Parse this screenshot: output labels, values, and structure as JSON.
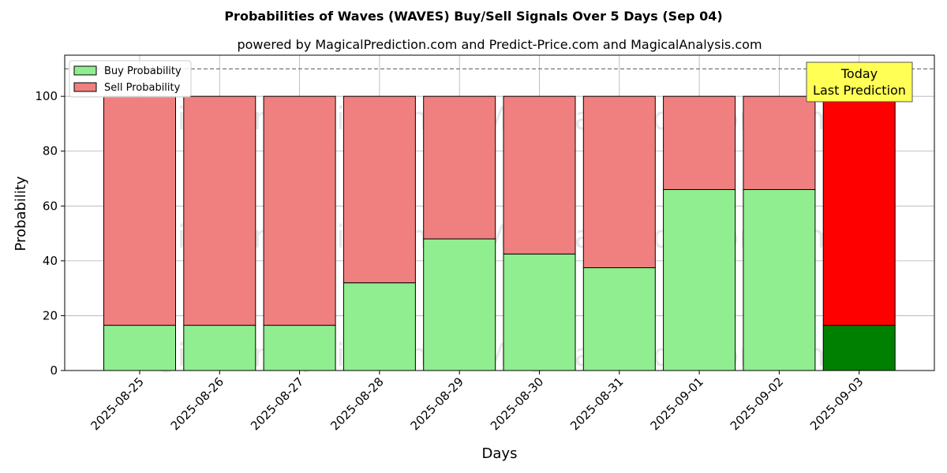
{
  "chart_data": {
    "type": "bar",
    "stacked": true,
    "title": "Probabilities of Waves (WAVES) Buy/Sell Signals Over 5 Days (Sep 04)",
    "subtitle": "powered by MagicalPrediction.com and Predict-Price.com and MagicalAnalysis.com",
    "xlabel": "Days",
    "ylabel": "Probability",
    "ylim": [
      0,
      115
    ],
    "yticks": [
      0,
      20,
      40,
      60,
      80,
      100
    ],
    "reference_line": 110,
    "grid": true,
    "legend_position": "top-left",
    "categories": [
      "2025-08-25",
      "2025-08-26",
      "2025-08-27",
      "2025-08-28",
      "2025-08-29",
      "2025-08-30",
      "2025-08-31",
      "2025-09-01",
      "2025-09-02",
      "2025-09-03"
    ],
    "series": [
      {
        "name": "Buy Probability",
        "color": "#90ee90",
        "values": [
          16.5,
          16.5,
          16.5,
          32,
          48,
          42.5,
          37.5,
          66,
          66,
          16.5
        ]
      },
      {
        "name": "Sell Probability",
        "color": "#f08080",
        "values": [
          83.5,
          83.5,
          83.5,
          68,
          52,
          57.5,
          62.5,
          34,
          34,
          83.5
        ]
      }
    ],
    "highlight": {
      "index": 9,
      "buy_color": "#008000",
      "sell_color": "#ff0000"
    },
    "annotation": {
      "lines": [
        "Today",
        "Last Prediction"
      ],
      "background": "#ffff55"
    },
    "watermarks": [
      "MagicalAnalysis.com",
      "MagicalPrediction.com"
    ]
  }
}
